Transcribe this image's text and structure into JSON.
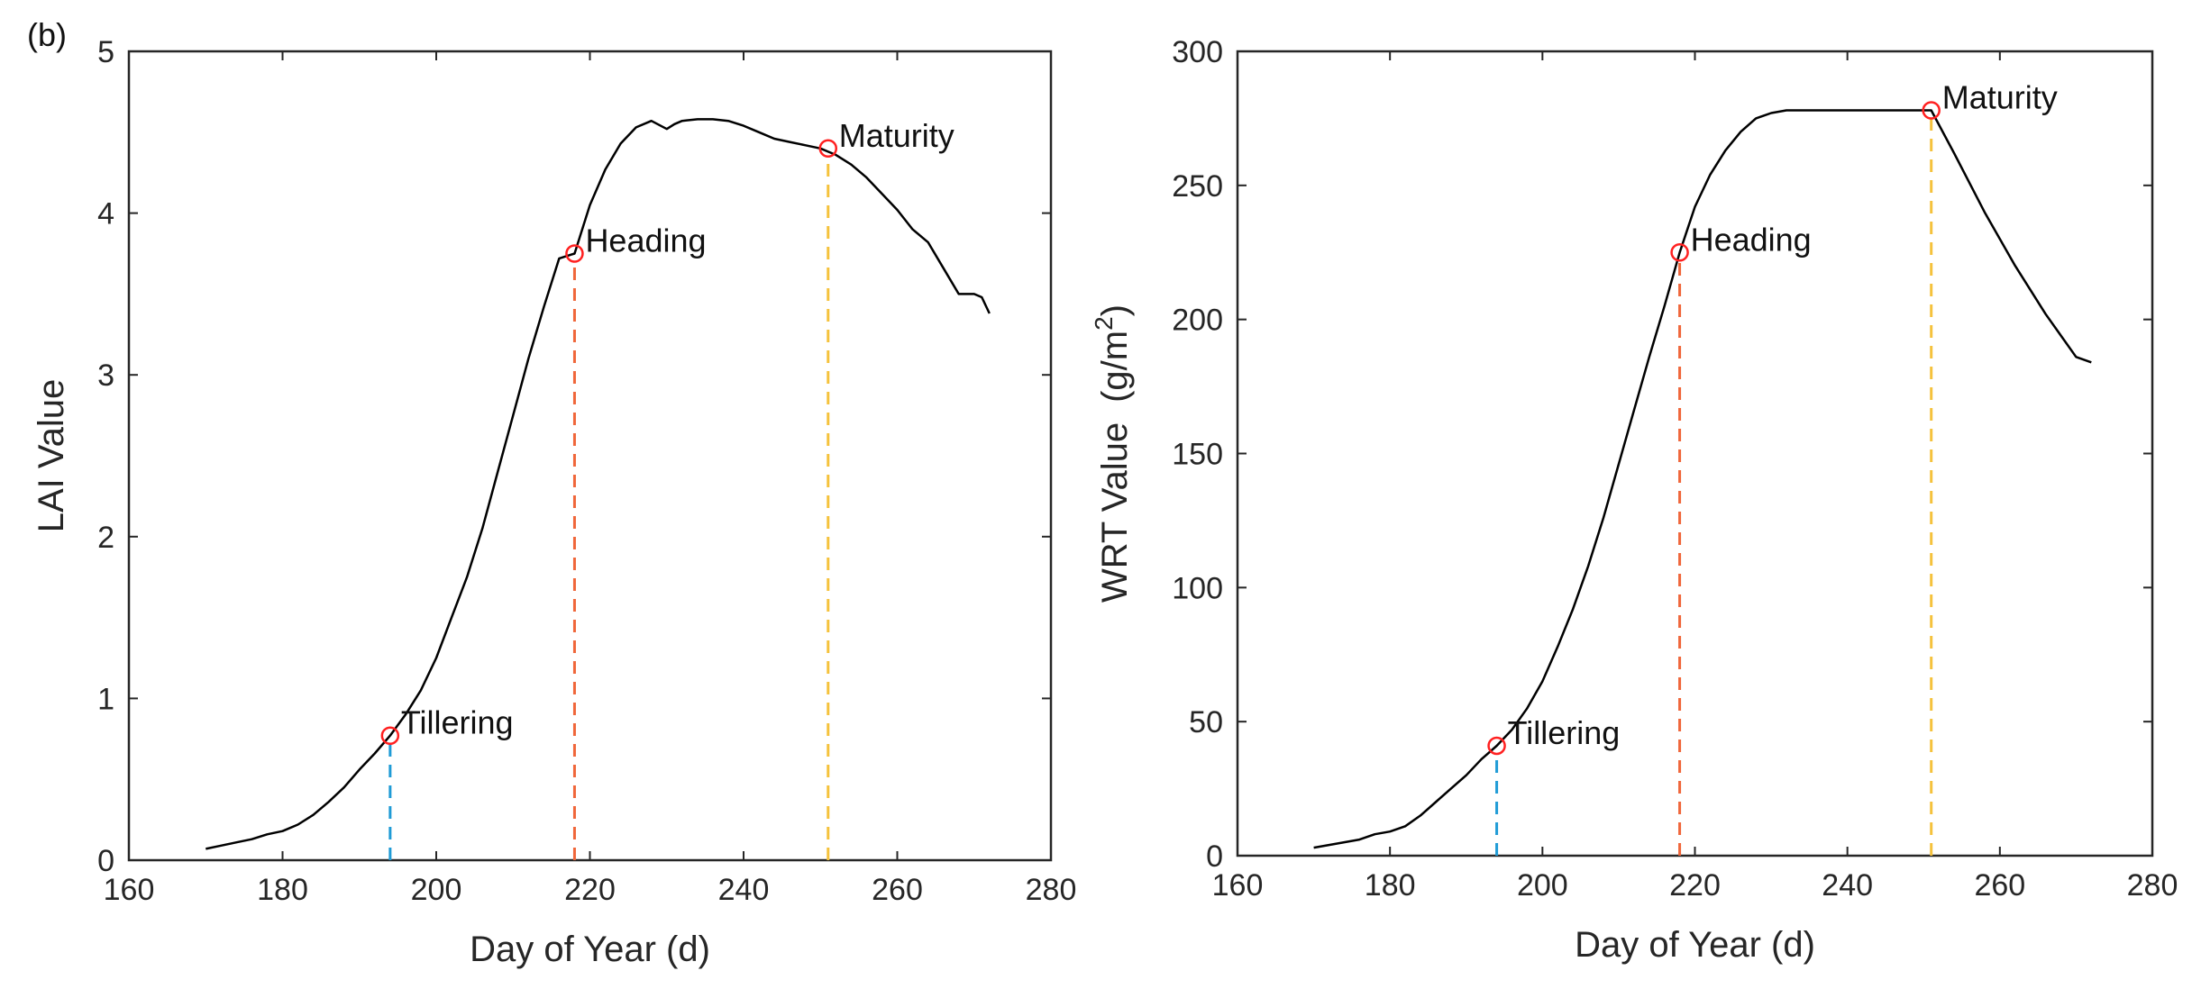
{
  "panel_label": "(b)",
  "chart_data": [
    {
      "type": "line",
      "title": "",
      "xlabel": "Day of Year (d)",
      "ylabel": "LAI Value",
      "ylabel_unit": "",
      "xlim": [
        160,
        280
      ],
      "ylim": [
        0,
        5
      ],
      "xticks": [
        160,
        180,
        200,
        220,
        240,
        260,
        280
      ],
      "yticks": [
        0,
        1,
        2,
        3,
        4,
        5
      ],
      "grid": false,
      "series": [
        {
          "name": "LAI",
          "color": "#000000",
          "x": [
            170,
            172,
            174,
            176,
            178,
            180,
            182,
            184,
            186,
            188,
            190,
            192,
            194,
            196,
            198,
            200,
            202,
            204,
            206,
            208,
            210,
            212,
            214,
            216,
            218,
            220,
            222,
            224,
            226,
            228,
            230,
            231,
            232,
            234,
            236,
            238,
            240,
            242,
            244,
            246,
            248,
            250,
            251,
            252,
            254,
            256,
            258,
            260,
            262,
            264,
            266,
            268,
            269,
            270,
            271,
            272
          ],
          "values": [
            0.07,
            0.09,
            0.11,
            0.13,
            0.16,
            0.18,
            0.22,
            0.28,
            0.36,
            0.45,
            0.56,
            0.66,
            0.77,
            0.9,
            1.05,
            1.25,
            1.5,
            1.75,
            2.05,
            2.4,
            2.75,
            3.1,
            3.42,
            3.72,
            3.75,
            4.05,
            4.27,
            4.43,
            4.53,
            4.57,
            4.52,
            4.55,
            4.57,
            4.58,
            4.58,
            4.57,
            4.54,
            4.5,
            4.46,
            4.44,
            4.42,
            4.4,
            4.38,
            4.36,
            4.3,
            4.22,
            4.12,
            4.02,
            3.9,
            3.82,
            3.66,
            3.5,
            3.5,
            3.5,
            3.48,
            3.38
          ]
        }
      ],
      "stages": [
        {
          "name": "Tillering",
          "x": 194,
          "y": 0.77,
          "line_color": "#1f9bd6"
        },
        {
          "name": "Heading",
          "x": 218,
          "y": 3.75,
          "line_color": "#f0663a"
        },
        {
          "name": "Maturity",
          "x": 251,
          "y": 4.4,
          "line_color": "#f5c23c"
        }
      ]
    },
    {
      "type": "line",
      "title": "",
      "xlabel": "Day of Year (d)",
      "ylabel": "WRT Value",
      "ylabel_unit": "(g/m",
      "ylabel_unit_sup": "2",
      "ylabel_unit_end": ")",
      "xlim": [
        160,
        280
      ],
      "ylim": [
        0,
        300
      ],
      "xticks": [
        160,
        180,
        200,
        220,
        240,
        260,
        280
      ],
      "yticks": [
        0,
        50,
        100,
        150,
        200,
        250,
        300
      ],
      "grid": false,
      "series": [
        {
          "name": "WRT",
          "color": "#000000",
          "x": [
            170,
            172,
            174,
            176,
            178,
            180,
            182,
            184,
            186,
            188,
            190,
            192,
            194,
            196,
            198,
            200,
            202,
            204,
            206,
            208,
            210,
            212,
            214,
            216,
            218,
            220,
            222,
            224,
            226,
            228,
            230,
            232,
            234,
            236,
            240,
            244,
            248,
            251,
            254,
            258,
            262,
            266,
            270,
            272
          ],
          "values": [
            3,
            4,
            5,
            6,
            8,
            9,
            11,
            15,
            20,
            25,
            30,
            36,
            41,
            47,
            55,
            65,
            78,
            92,
            108,
            126,
            146,
            166,
            186,
            205,
            225,
            242,
            254,
            263,
            270,
            275,
            277,
            278,
            278,
            278,
            278,
            278,
            278,
            278,
            262,
            240,
            220,
            202,
            186,
            184
          ]
        }
      ],
      "stages": [
        {
          "name": "Tillering",
          "x": 194,
          "y": 41,
          "line_color": "#1f9bd6"
        },
        {
          "name": "Heading",
          "x": 218,
          "y": 225,
          "line_color": "#f0663a"
        },
        {
          "name": "Maturity",
          "x": 251,
          "y": 278,
          "line_color": "#f5c23c"
        }
      ]
    }
  ]
}
